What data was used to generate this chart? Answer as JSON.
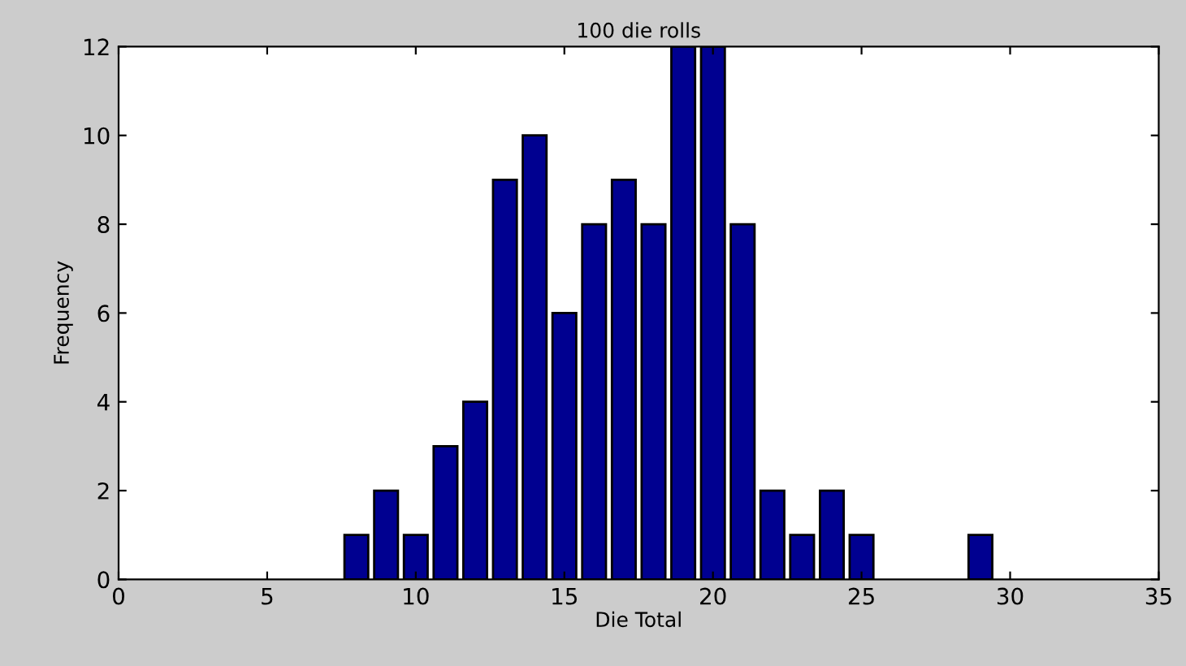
{
  "chart_data": {
    "type": "bar",
    "title": "100 die rolls",
    "xlabel": "Die Total",
    "ylabel": "Frequency",
    "x": [
      8,
      9,
      10,
      11,
      12,
      13,
      14,
      15,
      16,
      17,
      18,
      19,
      20,
      21,
      22,
      23,
      24,
      25,
      26,
      27,
      28,
      29
    ],
    "series": [
      {
        "color": "#000090",
        "values": [
          1,
          2,
          1,
          3,
          4,
          9,
          10,
          6,
          8,
          9,
          8,
          12,
          12,
          8,
          2,
          1,
          2,
          1,
          null,
          null,
          null,
          1
        ]
      }
    ],
    "xlim": [
      0,
      35
    ],
    "xticks": [
      0,
      5,
      10,
      15,
      20,
      25,
      30,
      35
    ],
    "ylim": [
      0,
      12
    ],
    "yticks": [
      0,
      2,
      4,
      6,
      8,
      10,
      12
    ],
    "grid": false,
    "legend": false
  }
}
